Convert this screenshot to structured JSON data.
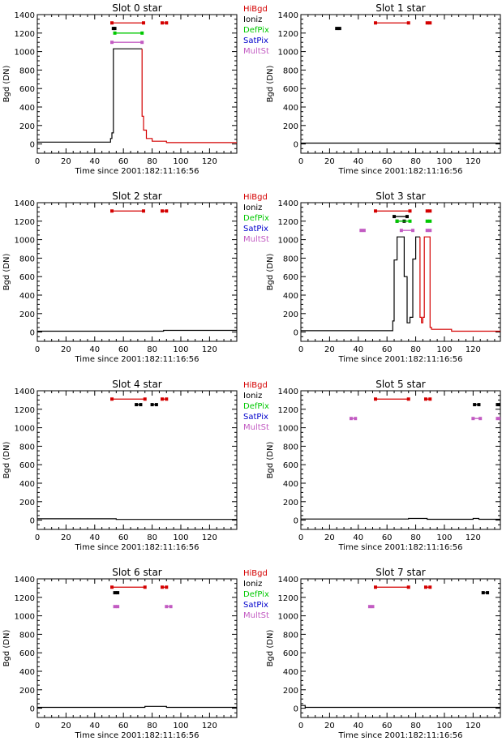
{
  "page": {
    "xlabel": "Time since 2001:182:11:16:56",
    "ylabel": "Bgd (DN)",
    "legend_entries": [
      "HiBgd",
      "Ioniz",
      "DefPix",
      "SatPix",
      "MultSt"
    ]
  },
  "colors": {
    "HiBgd": "#d40000",
    "Ioniz": "#000000",
    "DefPix": "#00c800",
    "SatPix": "#0000cc",
    "MultSt": "#c25bc2",
    "trace_normal": "#000000",
    "trace_high": "#d40000"
  },
  "chart_data": [
    {
      "type": "line",
      "title": "Slot 0 star",
      "xlabel": "Time since 2001:182:11:16:56",
      "ylabel": "Bgd (DN)",
      "xlim": [
        0,
        139
      ],
      "ylim": [
        -100,
        1400
      ],
      "xticks": [
        0,
        20,
        40,
        60,
        80,
        100,
        120
      ],
      "yticks": [
        0,
        200,
        400,
        600,
        800,
        1000,
        1200,
        1400
      ],
      "legend": [
        "HiBgd",
        "Ioniz",
        "DefPix",
        "SatPix",
        "MultSt"
      ],
      "series": [
        {
          "segments": [
            {
              "flag": "normal",
              "points": [
                [
                  0,
                  20
                ],
                [
                  51,
                  20
                ],
                [
                  51,
                  60
                ],
                [
                  52,
                  60
                ],
                [
                  52,
                  120
                ],
                [
                  53,
                  120
                ],
                [
                  53,
                  1030
                ],
                [
                  73,
                  1030
                ]
              ]
            },
            {
              "flag": "HiBgd",
              "points": [
                [
                  73,
                  1030
                ],
                [
                  73,
                  300
                ],
                [
                  74,
                  300
                ],
                [
                  74,
                  150
                ],
                [
                  76,
                  150
                ],
                [
                  76,
                  60
                ],
                [
                  80,
                  60
                ],
                [
                  80,
                  30
                ],
                [
                  90,
                  30
                ],
                [
                  90,
                  15
                ],
                [
                  139,
                  15
                ]
              ]
            }
          ]
        }
      ],
      "flag_bars": [
        {
          "type": "HiBgd",
          "y": 1310,
          "intervals": [
            [
              52,
              74
            ],
            [
              87,
              90
            ]
          ]
        },
        {
          "type": "Ioniz",
          "y": 1250,
          "intervals": [
            [
              53,
              54
            ]
          ]
        },
        {
          "type": "DefPix",
          "y": 1200,
          "intervals": [
            [
              54,
              73
            ]
          ]
        },
        {
          "type": "MultSt",
          "y": 1100,
          "intervals": [
            [
              52,
              73
            ]
          ]
        }
      ]
    },
    {
      "type": "line",
      "title": "Slot 1 star",
      "xlabel": "Time since 2001:182:11:16:56",
      "ylabel": "Bgd (DN)",
      "xlim": [
        0,
        139
      ],
      "ylim": [
        -100,
        1400
      ],
      "xticks": [
        0,
        20,
        40,
        60,
        80,
        100,
        120
      ],
      "yticks": [
        0,
        200,
        400,
        600,
        800,
        1000,
        1200,
        1400
      ],
      "legend": [],
      "series": [
        {
          "segments": [
            {
              "flag": "normal",
              "points": [
                [
                  0,
                  10
                ],
                [
                  139,
                  10
                ]
              ]
            }
          ]
        }
      ],
      "flag_bars": [
        {
          "type": "HiBgd",
          "y": 1310,
          "intervals": [
            [
              52,
              75
            ],
            [
              88,
              90
            ]
          ]
        },
        {
          "type": "Ioniz",
          "y": 1250,
          "intervals": [
            [
              25,
              27
            ]
          ]
        }
      ]
    },
    {
      "type": "line",
      "title": "Slot 2 star",
      "xlabel": "Time since 2001:182:11:16:56",
      "ylabel": "Bgd (DN)",
      "xlim": [
        0,
        139
      ],
      "ylim": [
        -100,
        1400
      ],
      "xticks": [
        0,
        20,
        40,
        60,
        80,
        100,
        120
      ],
      "yticks": [
        0,
        200,
        400,
        600,
        800,
        1000,
        1200,
        1400
      ],
      "legend": [
        "HiBgd",
        "Ioniz",
        "DefPix",
        "SatPix",
        "MultSt"
      ],
      "series": [
        {
          "segments": [
            {
              "flag": "normal",
              "points": [
                [
                  0,
                  10
                ],
                [
                  88,
                  10
                ],
                [
                  88,
                  18
                ],
                [
                  139,
                  18
                ]
              ]
            }
          ]
        }
      ],
      "flag_bars": [
        {
          "type": "HiBgd",
          "y": 1310,
          "intervals": [
            [
              52,
              74
            ],
            [
              87,
              90
            ]
          ]
        }
      ]
    },
    {
      "type": "line",
      "title": "Slot 3 star",
      "xlabel": "Time since 2001:182:11:16:56",
      "ylabel": "Bgd (DN)",
      "xlim": [
        0,
        139
      ],
      "ylim": [
        -100,
        1400
      ],
      "xticks": [
        0,
        20,
        40,
        60,
        80,
        100,
        120
      ],
      "yticks": [
        0,
        200,
        400,
        600,
        800,
        1000,
        1200,
        1400
      ],
      "legend": [],
      "series": [
        {
          "segments": [
            {
              "flag": "normal",
              "points": [
                [
                  0,
                  15
                ],
                [
                  64,
                  15
                ],
                [
                  64,
                  120
                ],
                [
                  65,
                  120
                ],
                [
                  65,
                  780
                ],
                [
                  67,
                  780
                ],
                [
                  67,
                  1030
                ],
                [
                  72,
                  1030
                ],
                [
                  72,
                  600
                ],
                [
                  74,
                  600
                ],
                [
                  74,
                  100
                ],
                [
                  76,
                  100
                ],
                [
                  76,
                  160
                ],
                [
                  78,
                  160
                ],
                [
                  78,
                  790
                ],
                [
                  80,
                  790
                ],
                [
                  80,
                  1030
                ],
                [
                  83,
                  1030
                ]
              ]
            },
            {
              "flag": "HiBgd",
              "points": [
                [
                  83,
                  1030
                ],
                [
                  83,
                  160
                ],
                [
                  84,
                  160
                ],
                [
                  84,
                  100
                ],
                [
                  85,
                  100
                ],
                [
                  85,
                  160
                ],
                [
                  86,
                  160
                ],
                [
                  86,
                  1030
                ],
                [
                  90,
                  1030
                ],
                [
                  90,
                  50
                ],
                [
                  91,
                  50
                ],
                [
                  91,
                  30
                ],
                [
                  105,
                  30
                ],
                [
                  105,
                  10
                ],
                [
                  139,
                  10
                ]
              ]
            }
          ]
        }
      ],
      "flag_bars": [
        {
          "type": "HiBgd",
          "y": 1310,
          "intervals": [
            [
              52,
              76
            ],
            [
              88,
              90
            ]
          ]
        },
        {
          "type": "Ioniz",
          "y": 1250,
          "intervals": [
            [
              65,
              74
            ]
          ]
        },
        {
          "type": "Ioniz",
          "y": 1200,
          "intervals": [
            [
              67,
              72
            ]
          ]
        },
        {
          "type": "DefPix",
          "y": 1200,
          "intervals": [
            [
              67,
              76
            ],
            [
              88,
              90
            ]
          ]
        },
        {
          "type": "MultSt",
          "y": 1100,
          "intervals": [
            [
              42,
              44
            ],
            [
              70,
              78
            ],
            [
              88,
              90
            ]
          ]
        }
      ]
    },
    {
      "type": "line",
      "title": "Slot 4 star",
      "xlabel": "Time since 2001:182:11:16:56",
      "ylabel": "Bgd (DN)",
      "xlim": [
        0,
        139
      ],
      "ylim": [
        -100,
        1400
      ],
      "xticks": [
        0,
        20,
        40,
        60,
        80,
        100,
        120
      ],
      "yticks": [
        0,
        200,
        400,
        600,
        800,
        1000,
        1200,
        1400
      ],
      "legend": [
        "HiBgd",
        "Ioniz",
        "DefPix",
        "SatPix",
        "MultSt"
      ],
      "series": [
        {
          "segments": [
            {
              "flag": "normal",
              "points": [
                [
                  0,
                  15
                ],
                [
                  55,
                  15
                ],
                [
                  55,
                  8
                ],
                [
                  139,
                  8
                ]
              ]
            }
          ]
        }
      ],
      "flag_bars": [
        {
          "type": "HiBgd",
          "y": 1310,
          "intervals": [
            [
              52,
              75
            ],
            [
              87,
              90
            ]
          ]
        },
        {
          "type": "Ioniz",
          "y": 1250,
          "intervals": [
            [
              69,
              72
            ],
            [
              80,
              83
            ]
          ]
        }
      ]
    },
    {
      "type": "line",
      "title": "Slot 5 star",
      "xlabel": "Time since 2001:182:11:16:56",
      "ylabel": "Bgd (DN)",
      "xlim": [
        0,
        139
      ],
      "ylim": [
        -100,
        1400
      ],
      "xticks": [
        0,
        20,
        40,
        60,
        80,
        100,
        120
      ],
      "yticks": [
        0,
        200,
        400,
        600,
        800,
        1000,
        1200,
        1400
      ],
      "legend": [],
      "series": [
        {
          "segments": [
            {
              "flag": "normal",
              "points": [
                [
                  0,
                  12
                ],
                [
                  75,
                  12
                ],
                [
                  75,
                  18
                ],
                [
                  88,
                  18
                ],
                [
                  88,
                  10
                ],
                [
                  120,
                  10
                ],
                [
                  120,
                  18
                ],
                [
                  124,
                  18
                ],
                [
                  124,
                  10
                ],
                [
                  139,
                  10
                ]
              ]
            }
          ]
        }
      ],
      "flag_bars": [
        {
          "type": "HiBgd",
          "y": 1310,
          "intervals": [
            [
              52,
              75
            ],
            [
              87,
              90
            ]
          ]
        },
        {
          "type": "Ioniz",
          "y": 1250,
          "intervals": [
            [
              121,
              124
            ],
            [
              137,
              139
            ]
          ]
        },
        {
          "type": "MultSt",
          "y": 1100,
          "intervals": [
            [
              35,
              38
            ],
            [
              120,
              125
            ],
            [
              137,
              139
            ]
          ]
        }
      ]
    },
    {
      "type": "line",
      "title": "Slot 6 star",
      "xlabel": "Time since 2001:182:11:16:56",
      "ylabel": "Bgd (DN)",
      "xlim": [
        0,
        139
      ],
      "ylim": [
        -100,
        1400
      ],
      "xticks": [
        0,
        20,
        40,
        60,
        80,
        100,
        120
      ],
      "yticks": [
        0,
        200,
        400,
        600,
        800,
        1000,
        1200,
        1400
      ],
      "legend": [
        "HiBgd",
        "Ioniz",
        "DefPix",
        "SatPix",
        "MultSt"
      ],
      "series": [
        {
          "segments": [
            {
              "flag": "normal",
              "points": [
                [
                  0,
                  10
                ],
                [
                  75,
                  10
                ],
                [
                  75,
                  20
                ],
                [
                  90,
                  20
                ],
                [
                  90,
                  10
                ],
                [
                  139,
                  10
                ]
              ]
            }
          ]
        }
      ],
      "flag_bars": [
        {
          "type": "HiBgd",
          "y": 1310,
          "intervals": [
            [
              52,
              75
            ],
            [
              87,
              90
            ]
          ]
        },
        {
          "type": "Ioniz",
          "y": 1250,
          "intervals": [
            [
              54,
              56
            ]
          ]
        },
        {
          "type": "MultSt",
          "y": 1100,
          "intervals": [
            [
              54,
              56
            ],
            [
              90,
              93
            ]
          ]
        }
      ]
    },
    {
      "type": "line",
      "title": "Slot 7 star",
      "xlabel": "Time since 2001:182:11:16:56",
      "ylabel": "Bgd (DN)",
      "xlim": [
        0,
        139
      ],
      "ylim": [
        -100,
        1400
      ],
      "xticks": [
        0,
        20,
        40,
        60,
        80,
        100,
        120
      ],
      "yticks": [
        0,
        200,
        400,
        600,
        800,
        1000,
        1200,
        1400
      ],
      "legend": [],
      "series": [
        {
          "segments": [
            {
              "flag": "normal",
              "points": [
                [
                  0,
                  30
                ],
                [
                  3,
                  30
                ],
                [
                  3,
                  10
                ],
                [
                  139,
                  10
                ]
              ]
            }
          ]
        }
      ],
      "flag_bars": [
        {
          "type": "HiBgd",
          "y": 1310,
          "intervals": [
            [
              52,
              75
            ],
            [
              87,
              90
            ]
          ]
        },
        {
          "type": "Ioniz",
          "y": 1250,
          "intervals": [
            [
              127,
              130
            ]
          ]
        },
        {
          "type": "MultSt",
          "y": 1100,
          "intervals": [
            [
              48,
              50
            ]
          ]
        }
      ]
    }
  ]
}
